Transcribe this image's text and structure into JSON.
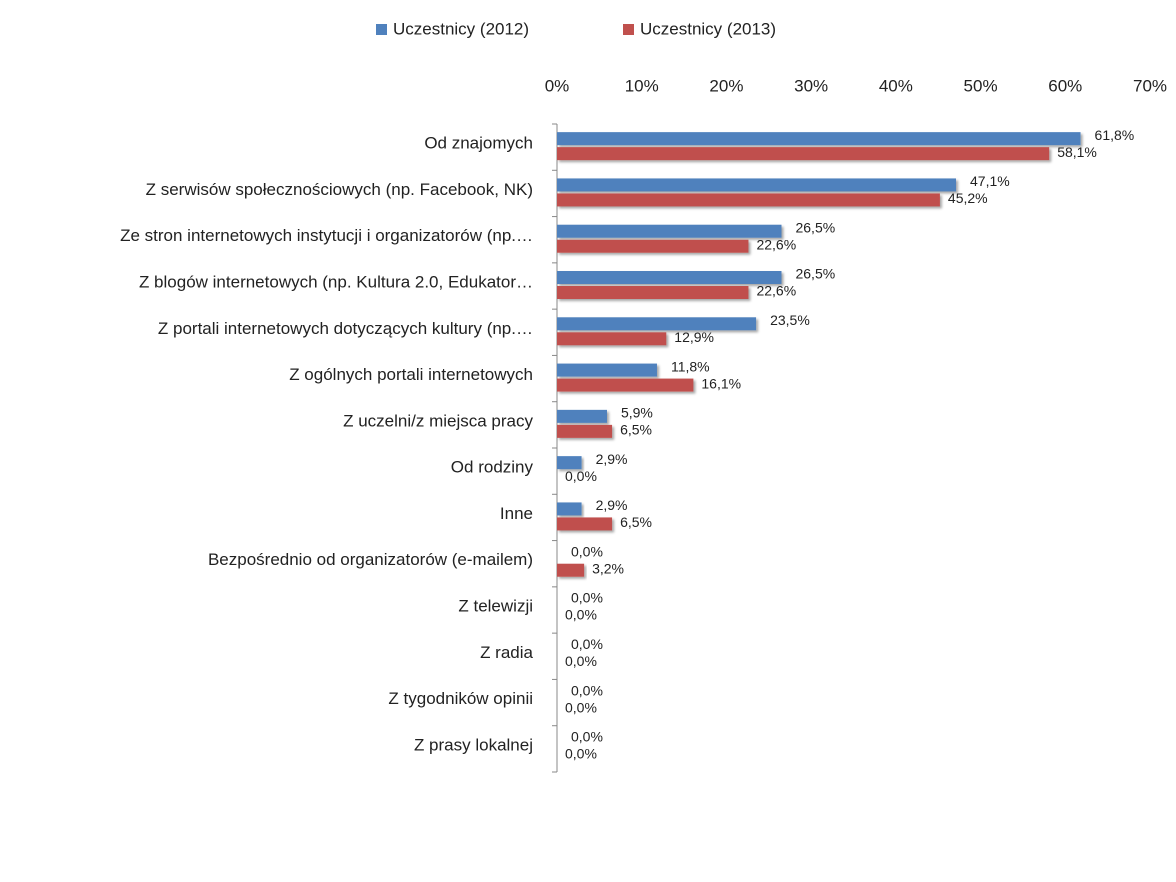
{
  "chart_data": {
    "type": "bar",
    "orientation": "horizontal",
    "categories": [
      "Od znajomych",
      "Z serwisów społecznościowych (np. Facebook, NK)",
      "Ze stron internetowych instytucji i organizatorów (np.…",
      "Z blogów internetowych (np. Kultura 2.0, Edukator…",
      "Z portali internetowych dotyczących kultury (np.…",
      "Z ogólnych portali internetowych",
      "Z uczelni/z miejsca pracy",
      "Od rodziny",
      "Inne",
      "Bezpośrednio od organizatorów (e-mailem)",
      "Z telewizji",
      "Z radia",
      "Z tygodników opinii",
      "Z prasy lokalnej"
    ],
    "series": [
      {
        "name": "Uczestnicy (2012)",
        "color": "#4f81bd",
        "values": [
          61.8,
          47.1,
          26.5,
          26.5,
          23.5,
          11.8,
          5.9,
          2.9,
          2.9,
          0,
          0,
          0,
          0,
          0
        ],
        "value_labels": [
          "61,8%",
          "47,1%",
          "26,5%",
          "26,5%",
          "23,5%",
          "11,8%",
          "5,9%",
          "2,9%",
          "2,9%",
          "0,0%",
          "0,0%",
          "0,0%",
          "0,0%",
          "0,0%"
        ]
      },
      {
        "name": "Uczestnicy (2013)",
        "color": "#c0504d",
        "values": [
          58.1,
          45.2,
          22.6,
          22.6,
          12.9,
          16.1,
          6.5,
          0,
          6.5,
          3.2,
          0,
          0,
          0,
          0
        ],
        "value_labels": [
          "58,1%",
          "45,2%",
          "22,6%",
          "22,6%",
          "12,9%",
          "16,1%",
          "6,5%",
          "0,0%",
          "6,5%",
          "3,2%",
          "0,0%",
          "0,0%",
          "0,0%",
          "0,0%"
        ]
      }
    ],
    "xlim": [
      0,
      70
    ],
    "xticks": [
      {
        "value": 0,
        "label": "0%"
      },
      {
        "value": 10,
        "label": "10%"
      },
      {
        "value": 20,
        "label": "20%"
      },
      {
        "value": 30,
        "label": "30%"
      },
      {
        "value": 40,
        "label": "40%"
      },
      {
        "value": 50,
        "label": "50%"
      },
      {
        "value": 60,
        "label": "60%"
      },
      {
        "value": 70,
        "label": "70%"
      }
    ],
    "legend": "top"
  }
}
